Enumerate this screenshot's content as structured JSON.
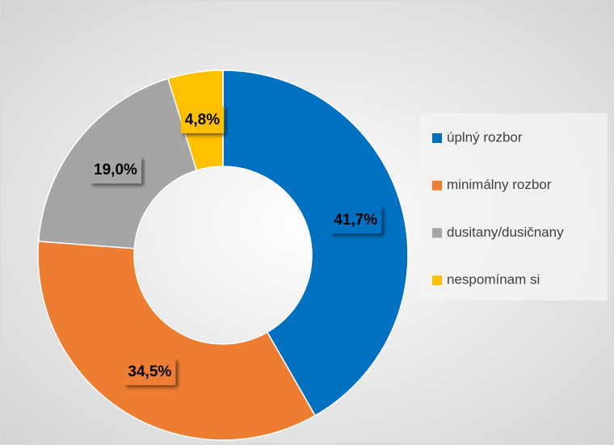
{
  "chart_data": {
    "type": "donut",
    "categories": [
      "úplný rozbor",
      "minimálny rozbor",
      "dusitany/dusičnany",
      "nespomínam si"
    ],
    "values": [
      41.7,
      34.5,
      19.0,
      4.8
    ],
    "value_labels": [
      "41,7%",
      "34,5%",
      "19,0%",
      "4,8%"
    ],
    "colors": [
      "#0070c0",
      "#ed7d31",
      "#a5a5a5",
      "#ffc000"
    ],
    "legend": "right"
  }
}
